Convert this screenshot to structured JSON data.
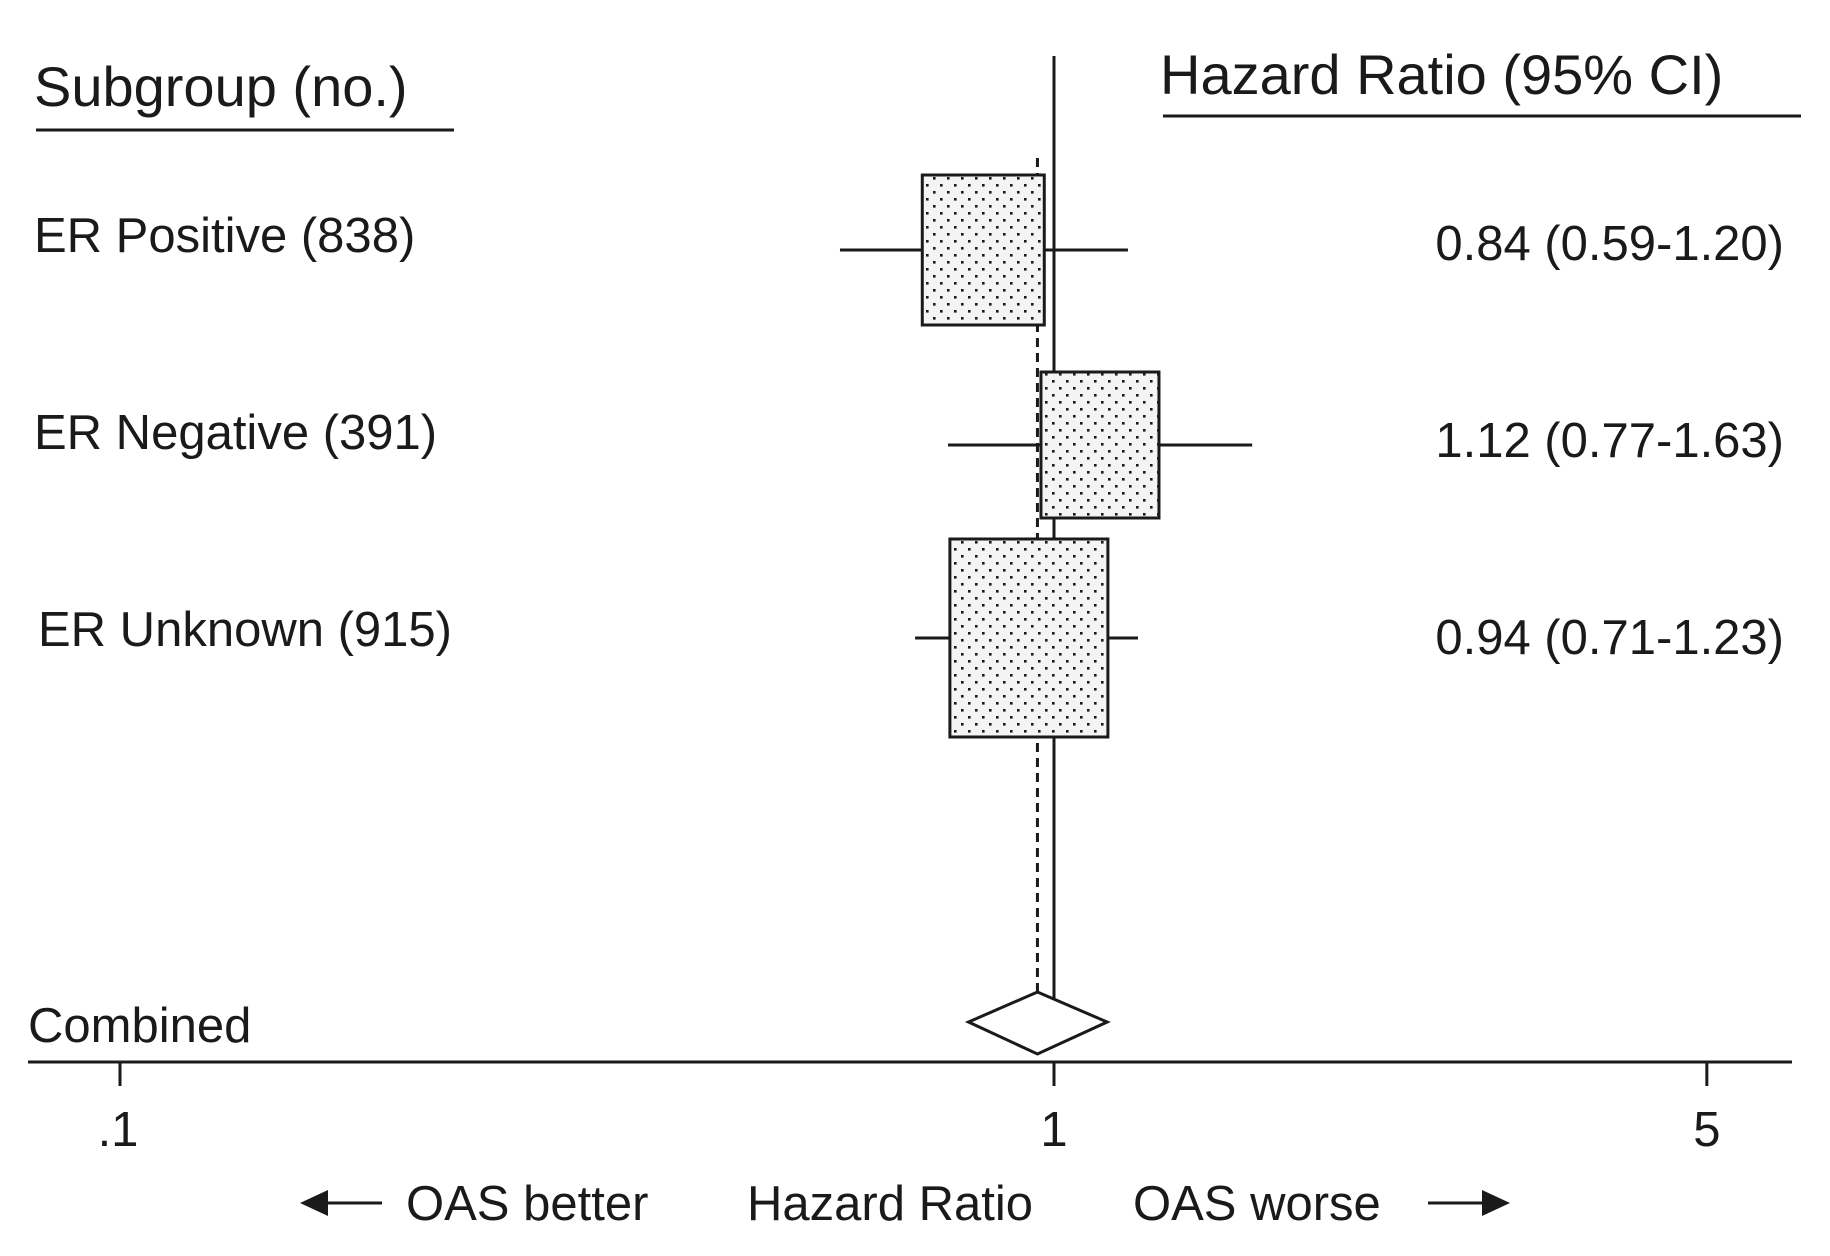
{
  "chart_data": {
    "type": "forest",
    "headers": {
      "left": "Subgroup (no.)",
      "right": "Hazard Ratio (95% CI)"
    },
    "rows": [
      {
        "label": "ER Positive (838)",
        "hr": 0.84,
        "lower": 0.59,
        "upper": 1.2,
        "hr_text": "0.84 (0.59-1.20)"
      },
      {
        "label": "ER Negative (391)",
        "hr": 1.12,
        "lower": 0.77,
        "upper": 1.63,
        "hr_text": "1.12 (0.77-1.63)"
      },
      {
        "label": "ER Unknown (915)",
        "hr": 0.94,
        "lower": 0.71,
        "upper": 1.23,
        "hr_text": "0.94 (0.71-1.23)"
      }
    ],
    "combined": {
      "label": "Combined",
      "hr": 0.96,
      "lower": 0.81,
      "upper": 1.14
    },
    "x_axis": {
      "scale": "log",
      "range": [
        0.1,
        6.2
      ],
      "ticks": [
        0.1,
        1,
        5
      ],
      "tick_labels": [
        ".1",
        "1",
        "5"
      ],
      "reference_line": 1
    },
    "axis_note": {
      "left": "OAS better",
      "center": "Hazard Ratio",
      "right": "OAS worse"
    },
    "colors": {
      "ink": "#1a1a1a",
      "box_fill": "#f2f2f2",
      "dot": "#1a1a1a"
    }
  }
}
